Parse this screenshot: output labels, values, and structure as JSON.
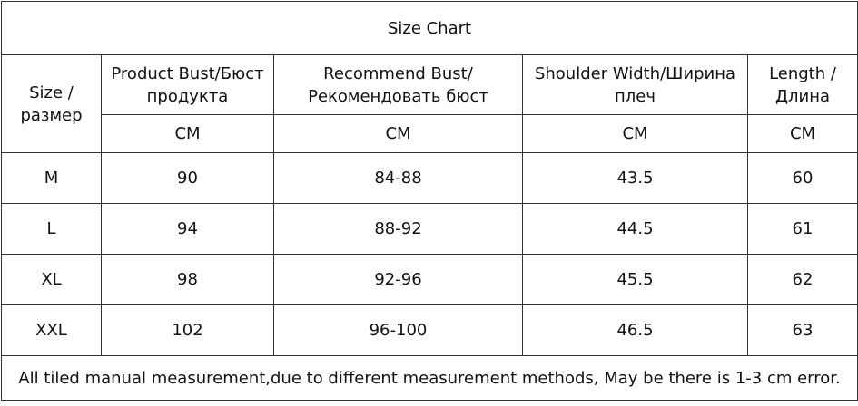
{
  "title": "Size Chart",
  "headers": [
    "Size / размер",
    "Product Bust/Бюст продукта",
    "Recommend  Bust/ Рекомендовать бюст",
    "Shoulder Width/Ширина плеч",
    "Length / Длина"
  ],
  "units": [
    "CM",
    "CM",
    "CM",
    "CM"
  ],
  "rows": [
    [
      "M",
      "90",
      "84-88",
      "43.5",
      "60"
    ],
    [
      "L",
      "94",
      "88-92",
      "44.5",
      "61"
    ],
    [
      "XL",
      "98",
      "92-96",
      "45.5",
      "62"
    ],
    [
      "XXL",
      "102",
      "96-100",
      "46.5",
      "63"
    ]
  ],
  "note": "All tiled manual measurement,due to different measurement methods, May be there is 1-3 cm error."
}
